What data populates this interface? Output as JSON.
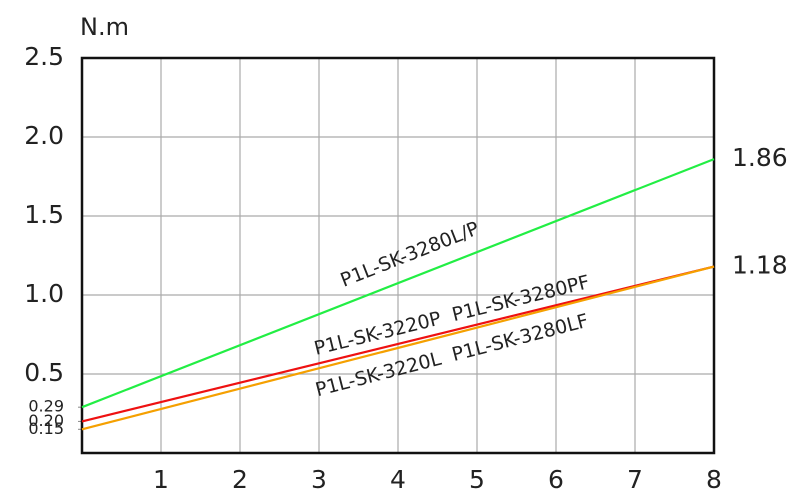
{
  "chart_data": {
    "type": "line",
    "y_unit": "N.m",
    "x": [
      0,
      8
    ],
    "xlim": [
      0,
      8
    ],
    "xticks": [
      1,
      2,
      3,
      4,
      5,
      6,
      7,
      8
    ],
    "ylim": [
      0,
      2.5
    ],
    "yticks": [
      {
        "value": 0.5,
        "label": "0.5"
      },
      {
        "value": 1,
        "label": "1.0"
      },
      {
        "value": 1.5,
        "label": "1.5"
      },
      {
        "value": 2,
        "label": "2.0"
      },
      {
        "value": 2.5,
        "label": "2.5"
      }
    ],
    "yticks_minor": [
      {
        "value": 0.15,
        "label": "0.15"
      },
      {
        "value": 0.2,
        "label": "0.20"
      },
      {
        "value": 0.29,
        "label": "0.29"
      }
    ],
    "grid": true,
    "series": [
      {
        "name": "P1L-SK-3280L/P",
        "color": "#22ee44",
        "values": [
          0.29,
          1.86
        ]
      },
      {
        "name": "P1L-SK-3220P  P1L-SK-3280PF",
        "color": "#ee1111",
        "values": [
          0.2,
          1.18
        ]
      },
      {
        "name": "P1L-SK-3220L  P1L-SK-3280LF",
        "color": "#f5a000",
        "values": [
          0.15,
          1.18
        ]
      }
    ],
    "end_labels": [
      {
        "value": 1.86,
        "label": "1.86"
      },
      {
        "value": 1.18,
        "label": "1.18"
      }
    ]
  }
}
